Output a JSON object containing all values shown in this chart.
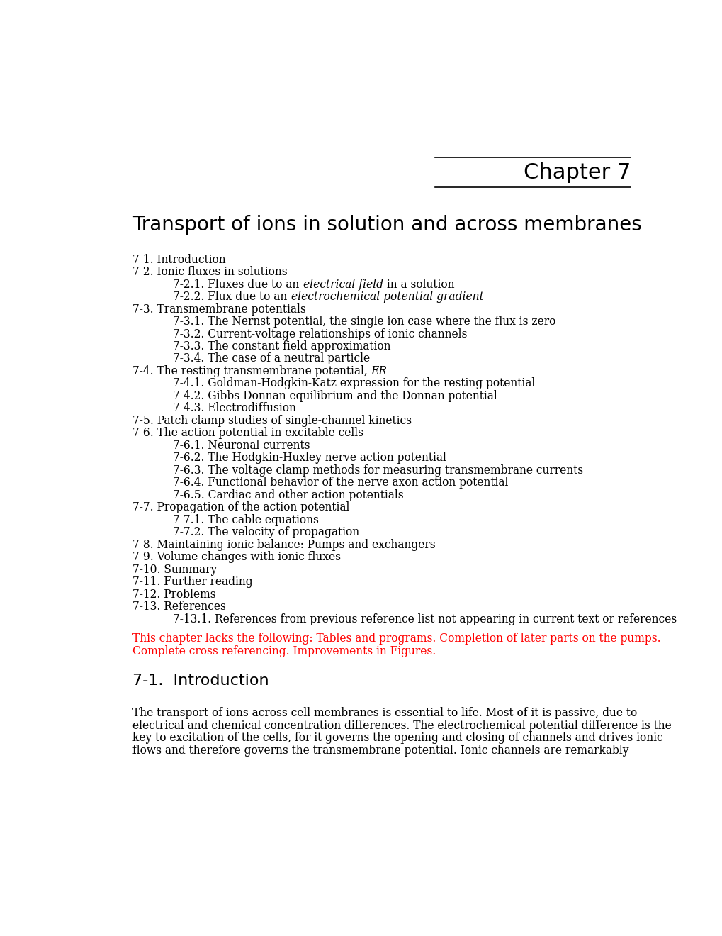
{
  "bg_color": "#ffffff",
  "chapter_label": "Chapter 7",
  "title": "Transport of ions in solution and across membranes",
  "toc": [
    {
      "level": 1,
      "text": "7-1. Introduction",
      "italic": "",
      "rest": ""
    },
    {
      "level": 1,
      "text": "7-2. Ionic fluxes in solutions",
      "italic": "",
      "rest": ""
    },
    {
      "level": 2,
      "text": "7-2.1. Fluxes due to an ",
      "italic": "electrical field",
      "rest": " in a solution"
    },
    {
      "level": 2,
      "text": "7-2.2. Flux due to an ",
      "italic": "electrochemical potential gradient",
      "rest": ""
    },
    {
      "level": 1,
      "text": "7-3. Transmembrane potentials",
      "italic": "",
      "rest": ""
    },
    {
      "level": 2,
      "text": "7-3.1. The Nernst potential, the single ion case where the flux is zero",
      "italic": "",
      "rest": ""
    },
    {
      "level": 2,
      "text": "7-3.2. Current-voltage relationships of ionic channels",
      "italic": "",
      "rest": ""
    },
    {
      "level": 2,
      "text": "7-3.3. The constant field approximation",
      "italic": "",
      "rest": ""
    },
    {
      "level": 2,
      "text": "7-3.4. The case of a neutral particle",
      "italic": "",
      "rest": ""
    },
    {
      "level": 1,
      "text": "7-4. The resting transmembrane potential, ",
      "italic": "ER",
      "rest": ""
    },
    {
      "level": 2,
      "text": "7-4.1. Goldman-Hodgkin-Katz expression for the resting potential",
      "italic": "",
      "rest": ""
    },
    {
      "level": 2,
      "text": "7-4.2. Gibbs-Donnan equilibrium and the Donnan potential",
      "italic": "",
      "rest": ""
    },
    {
      "level": 2,
      "text": "7-4.3. Electrodiffusion",
      "italic": "",
      "rest": ""
    },
    {
      "level": 1,
      "text": "7-5. Patch clamp studies of single-channel kinetics",
      "italic": "",
      "rest": ""
    },
    {
      "level": 1,
      "text": "7-6. The action potential in excitable cells",
      "italic": "",
      "rest": ""
    },
    {
      "level": 2,
      "text": "7-6.1. Neuronal currents",
      "italic": "",
      "rest": ""
    },
    {
      "level": 2,
      "text": "7-6.2. The Hodgkin-Huxley nerve action potential",
      "italic": "",
      "rest": ""
    },
    {
      "level": 2,
      "text": "7-6.3. The voltage clamp methods for measuring transmembrane currents",
      "italic": "",
      "rest": ""
    },
    {
      "level": 2,
      "text": "7-6.4. Functional behavior of the nerve axon action potential",
      "italic": "",
      "rest": ""
    },
    {
      "level": 2,
      "text": "7-6.5. Cardiac and other action potentials",
      "italic": "",
      "rest": ""
    },
    {
      "level": 1,
      "text": "7-7. Propagation of the action potential",
      "italic": "",
      "rest": ""
    },
    {
      "level": 2,
      "text": "7-7.1. The cable equations",
      "italic": "",
      "rest": ""
    },
    {
      "level": 2,
      "text": "7-7.2. The velocity of propagation",
      "italic": "",
      "rest": ""
    },
    {
      "level": 1,
      "text": "7-8. Maintaining ionic balance: Pumps and exchangers",
      "italic": "",
      "rest": ""
    },
    {
      "level": 1,
      "text": "7-9. Volume changes with ionic fluxes",
      "italic": "",
      "rest": ""
    },
    {
      "level": 1,
      "text": "7-10. Summary",
      "italic": "",
      "rest": ""
    },
    {
      "level": 1,
      "text": "7-11. Further reading",
      "italic": "",
      "rest": ""
    },
    {
      "level": 1,
      "text": "7-12. Problems",
      "italic": "",
      "rest": ""
    },
    {
      "level": 1,
      "text": "7-13. References",
      "italic": "",
      "rest": ""
    },
    {
      "level": 2,
      "text": "7-13.1. References from previous reference list not appearing in current text or references",
      "italic": "",
      "rest": ""
    }
  ],
  "red_text_line1": "This chapter lacks the following: Tables and programs. Completion of later parts on the pumps.",
  "red_text_line2": "Complete cross referencing. Improvements in Figures.",
  "section_header": "7-1.  Introduction",
  "body_lines": [
    "The transport of ions across cell membranes is essential to life. Most of it is passive, due to",
    "electrical and chemical concentration differences. The electrochemical potential difference is the",
    "key to excitation of the cells, for it governs the opening and closing of channels and drives ionic",
    "flows and therefore governs the transmembrane potential. Ionic channels are remarkably"
  ]
}
